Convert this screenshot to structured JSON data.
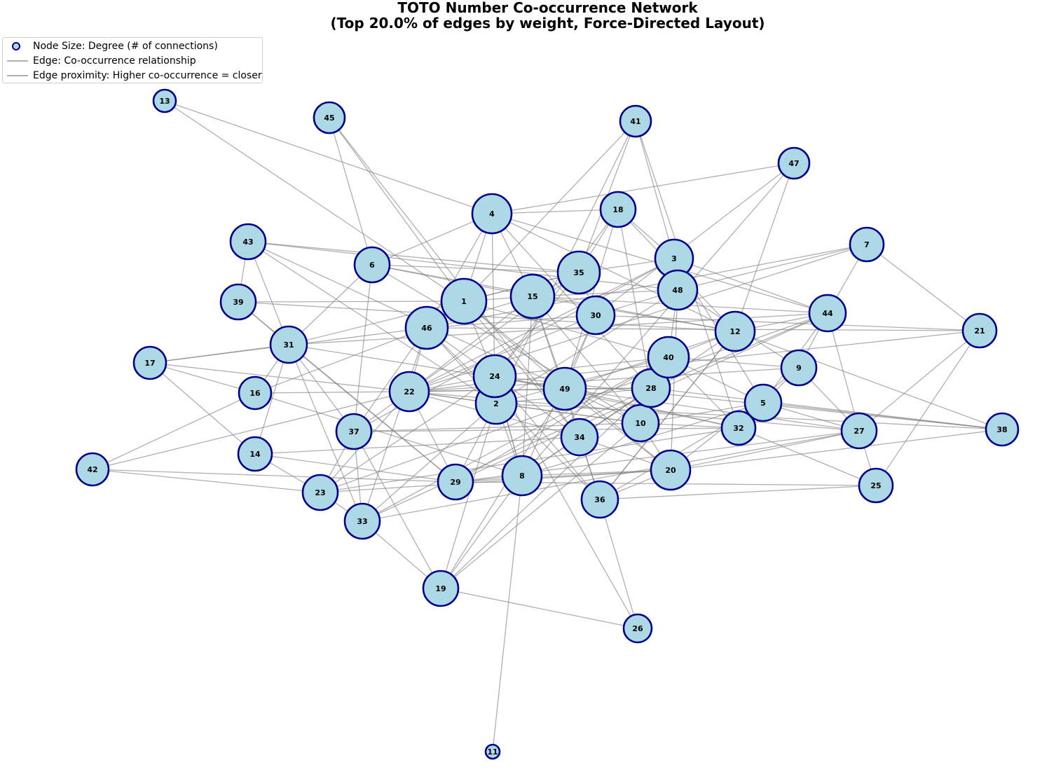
{
  "title": {
    "line1": "TOTO Number Co-occurrence Network",
    "line2": "(Top 20.0% of edges by weight, Force-Directed Layout)"
  },
  "legend": {
    "items": [
      {
        "symbol": "node-icon",
        "label": "Node Size: Degree (# of connections)"
      },
      {
        "symbol": "edge-line-icon",
        "label": "Edge: Co-occurrence relationship"
      },
      {
        "symbol": "edge-line-icon",
        "label": "Edge proximity: Higher co-occurrence = closer"
      }
    ]
  },
  "colors": {
    "node_fill": "#add8e6",
    "node_stroke": "#00008b",
    "edge": "#808080",
    "text": "#000000"
  },
  "nodes": [
    {
      "id": "1",
      "degree": 20
    },
    {
      "id": "2",
      "degree": 16
    },
    {
      "id": "3",
      "degree": 14
    },
    {
      "id": "4",
      "degree": 15
    },
    {
      "id": "5",
      "degree": 13
    },
    {
      "id": "6",
      "degree": 12
    },
    {
      "id": "7",
      "degree": 10
    },
    {
      "id": "8",
      "degree": 15
    },
    {
      "id": "9",
      "degree": 12
    },
    {
      "id": "10",
      "degree": 13
    },
    {
      "id": "11",
      "degree": 1
    },
    {
      "id": "12",
      "degree": 15
    },
    {
      "id": "13",
      "degree": 4
    },
    {
      "id": "14",
      "degree": 10
    },
    {
      "id": "15",
      "degree": 19
    },
    {
      "id": "16",
      "degree": 9
    },
    {
      "id": "17",
      "degree": 9
    },
    {
      "id": "18",
      "degree": 12
    },
    {
      "id": "19",
      "degree": 11
    },
    {
      "id": "20",
      "degree": 15
    },
    {
      "id": "21",
      "degree": 10
    },
    {
      "id": "22",
      "degree": 15
    },
    {
      "id": "23",
      "degree": 12
    },
    {
      "id": "24",
      "degree": 17
    },
    {
      "id": "25",
      "degree": 10
    },
    {
      "id": "26",
      "degree": 7
    },
    {
      "id": "27",
      "degree": 12
    },
    {
      "id": "28",
      "degree": 14
    },
    {
      "id": "29",
      "degree": 12
    },
    {
      "id": "30",
      "degree": 14
    },
    {
      "id": "31",
      "degree": 13
    },
    {
      "id": "32",
      "degree": 10
    },
    {
      "id": "33",
      "degree": 11
    },
    {
      "id": "34",
      "degree": 13
    },
    {
      "id": "35",
      "degree": 17
    },
    {
      "id": "36",
      "degree": 13
    },
    {
      "id": "37",
      "degree": 12
    },
    {
      "id": "38",
      "degree": 9
    },
    {
      "id": "39",
      "degree": 11
    },
    {
      "id": "40",
      "degree": 16
    },
    {
      "id": "41",
      "degree": 8
    },
    {
      "id": "42",
      "degree": 9
    },
    {
      "id": "43",
      "degree": 11
    },
    {
      "id": "44",
      "degree": 13
    },
    {
      "id": "45",
      "degree": 8
    },
    {
      "id": "46",
      "degree": 17
    },
    {
      "id": "47",
      "degree": 8
    },
    {
      "id": "48",
      "degree": 15
    },
    {
      "id": "49",
      "degree": 17
    }
  ],
  "edges": [
    [
      "13",
      "1"
    ],
    [
      "13",
      "4"
    ],
    [
      "45",
      "1"
    ],
    [
      "45",
      "6"
    ],
    [
      "45",
      "34"
    ],
    [
      "41",
      "3"
    ],
    [
      "41",
      "35"
    ],
    [
      "41",
      "1"
    ],
    [
      "41",
      "2"
    ],
    [
      "41",
      "32"
    ],
    [
      "47",
      "4"
    ],
    [
      "47",
      "8"
    ],
    [
      "47",
      "30"
    ],
    [
      "47",
      "12"
    ],
    [
      "4",
      "18"
    ],
    [
      "4",
      "1"
    ],
    [
      "4",
      "24"
    ],
    [
      "4",
      "15"
    ],
    [
      "4",
      "12"
    ],
    [
      "4",
      "6"
    ],
    [
      "4",
      "44"
    ],
    [
      "4",
      "46"
    ],
    [
      "4",
      "28"
    ],
    [
      "18",
      "3"
    ],
    [
      "18",
      "35"
    ],
    [
      "18",
      "24"
    ],
    [
      "18",
      "28"
    ],
    [
      "18",
      "12"
    ],
    [
      "18",
      "49"
    ],
    [
      "43",
      "39"
    ],
    [
      "43",
      "31"
    ],
    [
      "43",
      "35"
    ],
    [
      "43",
      "48"
    ],
    [
      "43",
      "2"
    ],
    [
      "43",
      "10"
    ],
    [
      "6",
      "35"
    ],
    [
      "6",
      "37"
    ],
    [
      "6",
      "10"
    ],
    [
      "6",
      "12"
    ],
    [
      "6",
      "31"
    ],
    [
      "6",
      "15"
    ],
    [
      "3",
      "35"
    ],
    [
      "3",
      "44"
    ],
    [
      "3",
      "48"
    ],
    [
      "3",
      "22"
    ],
    [
      "3",
      "5"
    ],
    [
      "3",
      "37"
    ],
    [
      "7",
      "44"
    ],
    [
      "7",
      "21"
    ],
    [
      "7",
      "48"
    ],
    [
      "7",
      "46"
    ],
    [
      "7",
      "22"
    ],
    [
      "35",
      "1"
    ],
    [
      "35",
      "15"
    ],
    [
      "35",
      "22"
    ],
    [
      "35",
      "31"
    ],
    [
      "35",
      "24"
    ],
    [
      "35",
      "30"
    ],
    [
      "48",
      "15"
    ],
    [
      "48",
      "30"
    ],
    [
      "48",
      "40"
    ],
    [
      "48",
      "2"
    ],
    [
      "48",
      "20"
    ],
    [
      "48",
      "9"
    ],
    [
      "39",
      "1"
    ],
    [
      "39",
      "31"
    ],
    [
      "39",
      "12"
    ],
    [
      "39",
      "29"
    ],
    [
      "1",
      "15"
    ],
    [
      "1",
      "24"
    ],
    [
      "1",
      "46"
    ],
    [
      "1",
      "20"
    ],
    [
      "1",
      "34"
    ],
    [
      "1",
      "49"
    ],
    [
      "1",
      "40"
    ],
    [
      "15",
      "46"
    ],
    [
      "15",
      "49"
    ],
    [
      "15",
      "22"
    ],
    [
      "15",
      "10"
    ],
    [
      "15",
      "12"
    ],
    [
      "15",
      "44"
    ],
    [
      "15",
      "34"
    ],
    [
      "15",
      "8"
    ],
    [
      "30",
      "22"
    ],
    [
      "30",
      "46"
    ],
    [
      "30",
      "21"
    ],
    [
      "30",
      "8"
    ],
    [
      "30",
      "49"
    ],
    [
      "44",
      "12"
    ],
    [
      "44",
      "5"
    ],
    [
      "44",
      "9"
    ],
    [
      "44",
      "27"
    ],
    [
      "44",
      "31"
    ],
    [
      "44",
      "28"
    ],
    [
      "44",
      "29"
    ],
    [
      "44",
      "23"
    ],
    [
      "21",
      "46"
    ],
    [
      "21",
      "25"
    ],
    [
      "21",
      "27"
    ],
    [
      "21",
      "22"
    ],
    [
      "46",
      "22"
    ],
    [
      "46",
      "2"
    ],
    [
      "46",
      "17"
    ],
    [
      "46",
      "16"
    ],
    [
      "46",
      "37"
    ],
    [
      "46",
      "36"
    ],
    [
      "46",
      "33"
    ],
    [
      "46",
      "34"
    ],
    [
      "31",
      "16"
    ],
    [
      "31",
      "14"
    ],
    [
      "31",
      "17"
    ],
    [
      "31",
      "37"
    ],
    [
      "31",
      "29"
    ],
    [
      "31",
      "49"
    ],
    [
      "17",
      "16"
    ],
    [
      "17",
      "14"
    ],
    [
      "17",
      "22"
    ],
    [
      "12",
      "40"
    ],
    [
      "12",
      "49"
    ],
    [
      "12",
      "34"
    ],
    [
      "12",
      "36"
    ],
    [
      "40",
      "2"
    ],
    [
      "40",
      "24"
    ],
    [
      "40",
      "9"
    ],
    [
      "40",
      "10"
    ],
    [
      "40",
      "28"
    ],
    [
      "40",
      "29"
    ],
    [
      "40",
      "5"
    ],
    [
      "40",
      "32"
    ],
    [
      "40",
      "33"
    ],
    [
      "9",
      "22"
    ],
    [
      "9",
      "27"
    ],
    [
      "9",
      "20"
    ],
    [
      "9",
      "5"
    ],
    [
      "24",
      "49"
    ],
    [
      "24",
      "2"
    ],
    [
      "24",
      "22"
    ],
    [
      "24",
      "36"
    ],
    [
      "24",
      "8"
    ],
    [
      "24",
      "32"
    ],
    [
      "24",
      "23"
    ],
    [
      "49",
      "22"
    ],
    [
      "49",
      "20"
    ],
    [
      "49",
      "32"
    ],
    [
      "49",
      "19"
    ],
    [
      "49",
      "27"
    ],
    [
      "49",
      "28"
    ],
    [
      "49",
      "36"
    ],
    [
      "16",
      "22"
    ],
    [
      "16",
      "8"
    ],
    [
      "16",
      "42"
    ],
    [
      "22",
      "37"
    ],
    [
      "22",
      "2"
    ],
    [
      "22",
      "28"
    ],
    [
      "22",
      "29"
    ],
    [
      "22",
      "23"
    ],
    [
      "22",
      "10"
    ],
    [
      "22",
      "27"
    ],
    [
      "2",
      "28"
    ],
    [
      "2",
      "10"
    ],
    [
      "2",
      "8"
    ],
    [
      "2",
      "33"
    ],
    [
      "2",
      "38"
    ],
    [
      "2",
      "19"
    ],
    [
      "28",
      "38"
    ],
    [
      "28",
      "34"
    ],
    [
      "28",
      "8"
    ],
    [
      "28",
      "33"
    ],
    [
      "28",
      "19"
    ],
    [
      "5",
      "8"
    ],
    [
      "5",
      "36"
    ],
    [
      "5",
      "27"
    ],
    [
      "5",
      "38"
    ],
    [
      "5",
      "10"
    ],
    [
      "10",
      "32"
    ],
    [
      "10",
      "20"
    ],
    [
      "10",
      "37"
    ],
    [
      "10",
      "19"
    ],
    [
      "32",
      "25"
    ],
    [
      "32",
      "37"
    ],
    [
      "32",
      "23"
    ],
    [
      "27",
      "25"
    ],
    [
      "27",
      "20"
    ],
    [
      "27",
      "33"
    ],
    [
      "27",
      "29"
    ],
    [
      "38",
      "20"
    ],
    [
      "38",
      "24"
    ],
    [
      "38",
      "12"
    ],
    [
      "42",
      "29"
    ],
    [
      "42",
      "23"
    ],
    [
      "42",
      "22"
    ],
    [
      "14",
      "23"
    ],
    [
      "14",
      "29"
    ],
    [
      "14",
      "34"
    ],
    [
      "37",
      "23"
    ],
    [
      "37",
      "33"
    ],
    [
      "37",
      "19"
    ],
    [
      "34",
      "20"
    ],
    [
      "34",
      "36"
    ],
    [
      "34",
      "22"
    ],
    [
      "34",
      "8"
    ],
    [
      "8",
      "29"
    ],
    [
      "8",
      "20"
    ],
    [
      "8",
      "11"
    ],
    [
      "8",
      "19"
    ],
    [
      "8",
      "24"
    ],
    [
      "29",
      "25"
    ],
    [
      "29",
      "20"
    ],
    [
      "29",
      "2"
    ],
    [
      "20",
      "36"
    ],
    [
      "20",
      "23"
    ],
    [
      "36",
      "26"
    ],
    [
      "36",
      "25"
    ],
    [
      "36",
      "12"
    ],
    [
      "23",
      "33"
    ],
    [
      "33",
      "19"
    ],
    [
      "33",
      "31"
    ],
    [
      "19",
      "26"
    ],
    [
      "26",
      "24"
    ]
  ]
}
